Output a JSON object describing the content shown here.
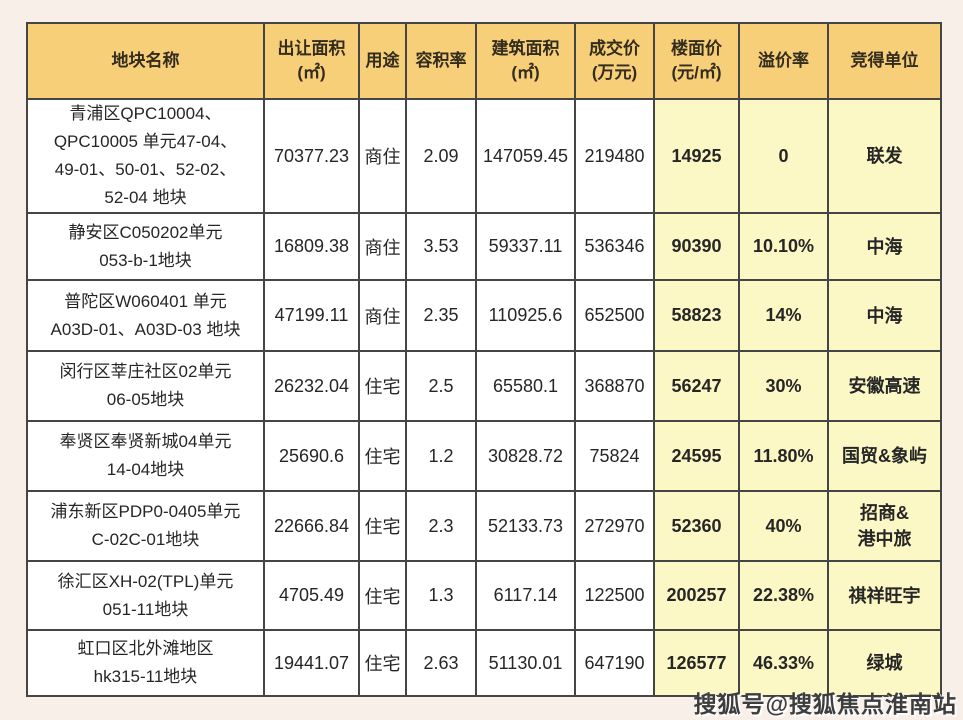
{
  "colors": {
    "page_bg": "#f8efe8",
    "header_bg": "#f7cf78",
    "highlight_bg": "#fbf8c5",
    "border": "#454545",
    "text": "#262626"
  },
  "watermark": "搜狐号@搜狐焦点淮南站",
  "table": {
    "headers": [
      {
        "line1": "地块名称",
        "line2": ""
      },
      {
        "line1": "出让面积",
        "line2": "(㎡)"
      },
      {
        "line1": "用途",
        "line2": ""
      },
      {
        "line1": "容积率",
        "line2": ""
      },
      {
        "line1": "建筑面积",
        "line2": "(㎡)"
      },
      {
        "line1": "成交价",
        "line2": "(万元)"
      },
      {
        "line1": "楼面价",
        "line2": "(元/㎡)"
      },
      {
        "line1": "溢价率",
        "line2": ""
      },
      {
        "line1": "竞得单位",
        "line2": ""
      }
    ],
    "rows": [
      {
        "name_lines": [
          "青浦区QPC10004、",
          "QPC10005 单元47-04、",
          "49-01、50-01、52-02、",
          "52-04 地块"
        ],
        "area": "70377.23",
        "use": "商住",
        "far": "2.09",
        "gfa": "147059.45",
        "price": "219480",
        "floor_price": "14925",
        "premium": "0",
        "winner_lines": [
          "联发"
        ]
      },
      {
        "name_lines": [
          "静安区C050202单元",
          "053-b-1地块"
        ],
        "area": "16809.38",
        "use": "商住",
        "far": "3.53",
        "gfa": "59337.11",
        "price": "536346",
        "floor_price": "90390",
        "premium": "10.10%",
        "winner_lines": [
          "中海"
        ]
      },
      {
        "name_lines": [
          "普陀区W060401 单元",
          "A03D-01、A03D-03 地块"
        ],
        "area": "47199.11",
        "use": "商住",
        "far": "2.35",
        "gfa": "110925.6",
        "price": "652500",
        "floor_price": "58823",
        "premium": "14%",
        "winner_lines": [
          "中海"
        ]
      },
      {
        "name_lines": [
          "闵行区莘庄社区02单元",
          "06-05地块"
        ],
        "area": "26232.04",
        "use": "住宅",
        "far": "2.5",
        "gfa": "65580.1",
        "price": "368870",
        "floor_price": "56247",
        "premium": "30%",
        "winner_lines": [
          "安徽高速"
        ]
      },
      {
        "name_lines": [
          "奉贤区奉贤新城04单元",
          "14-04地块"
        ],
        "area": "25690.6",
        "use": "住宅",
        "far": "1.2",
        "gfa": "30828.72",
        "price": "75824",
        "floor_price": "24595",
        "premium": "11.80%",
        "winner_lines": [
          "国贸&象屿"
        ]
      },
      {
        "name_lines": [
          "浦东新区PDP0-0405单元",
          "C-02C-01地块"
        ],
        "area": "22666.84",
        "use": "住宅",
        "far": "2.3",
        "gfa": "52133.73",
        "price": "272970",
        "floor_price": "52360",
        "premium": "40%",
        "winner_lines": [
          "招商&",
          "港中旅"
        ]
      },
      {
        "name_lines": [
          "徐汇区XH-02(TPL)单元",
          "051-11地块"
        ],
        "area": "4705.49",
        "use": "住宅",
        "far": "1.3",
        "gfa": "6117.14",
        "price": "122500",
        "floor_price": "200257",
        "premium": "22.38%",
        "winner_lines": [
          "祺祥旺宇"
        ]
      },
      {
        "name_lines": [
          "虹口区北外滩地区",
          "hk315-11地块"
        ],
        "area": "19441.07",
        "use": "住宅",
        "far": "2.63",
        "gfa": "51130.01",
        "price": "647190",
        "floor_price": "126577",
        "premium": "46.33%",
        "winner_lines": [
          "绿城"
        ]
      }
    ]
  },
  "chart_data": {
    "type": "table",
    "title": "",
    "columns": [
      "地块名称",
      "出让面积(㎡)",
      "用途",
      "容积率",
      "建筑面积(㎡)",
      "成交价(万元)",
      "楼面价(元/㎡)",
      "溢价率",
      "竞得单位"
    ],
    "rows": [
      [
        "青浦区QPC10004、QPC10005 单元47-04、49-01、50-01、52-02、52-04 地块",
        70377.23,
        "商住",
        2.09,
        147059.45,
        219480,
        14925,
        "0",
        "联发"
      ],
      [
        "静安区C050202单元 053-b-1地块",
        16809.38,
        "商住",
        3.53,
        59337.11,
        536346,
        90390,
        "10.10%",
        "中海"
      ],
      [
        "普陀区W060401 单元 A03D-01、A03D-03 地块",
        47199.11,
        "商住",
        2.35,
        110925.6,
        652500,
        58823,
        "14%",
        "中海"
      ],
      [
        "闵行区莘庄社区02单元 06-05地块",
        26232.04,
        "住宅",
        2.5,
        65580.1,
        368870,
        56247,
        "30%",
        "安徽高速"
      ],
      [
        "奉贤区奉贤新城04单元 14-04地块",
        25690.6,
        "住宅",
        1.2,
        30828.72,
        75824,
        24595,
        "11.80%",
        "国贸&象屿"
      ],
      [
        "浦东新区PDP0-0405单元 C-02C-01地块",
        22666.84,
        "住宅",
        2.3,
        52133.73,
        272970,
        52360,
        "40%",
        "招商&港中旅"
      ],
      [
        "徐汇区XH-02(TPL)单元 051-11地块",
        4705.49,
        "住宅",
        1.3,
        6117.14,
        122500,
        200257,
        "22.38%",
        "祺祥旺宇"
      ],
      [
        "虹口区北外滩地区 hk315-11地块",
        19441.07,
        "住宅",
        2.63,
        51130.01,
        647190,
        126577,
        "46.33%",
        "绿城"
      ]
    ],
    "highlighted_columns": [
      "楼面价(元/㎡)",
      "溢价率",
      "竞得单位"
    ],
    "legend_position": "none",
    "grid": true
  }
}
